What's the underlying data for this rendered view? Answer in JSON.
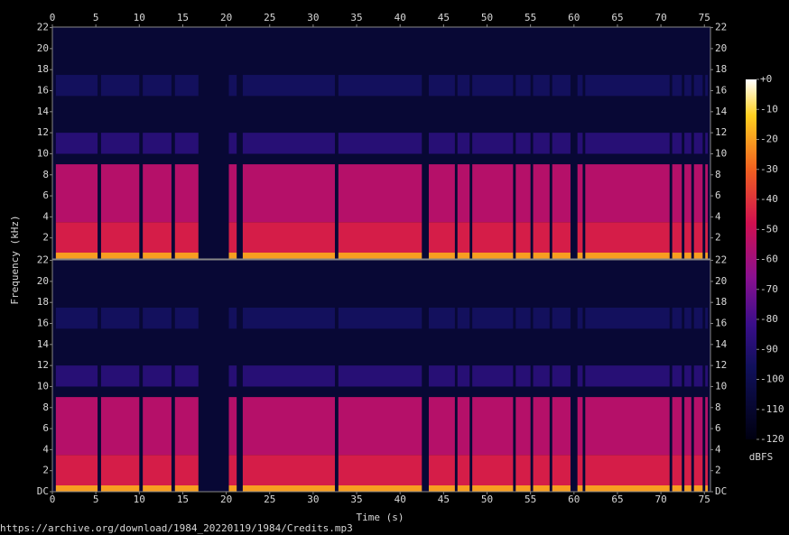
{
  "chart_data": {
    "type": "spectrogram",
    "xlabel": "Time (s)",
    "ylabel": "Frequency (kHz)",
    "zlabel": "dBFS",
    "xlim": [
      0,
      75.7
    ],
    "xticks": [
      0,
      5,
      10,
      15,
      20,
      25,
      30,
      35,
      40,
      45,
      50,
      55,
      60,
      65,
      70,
      75
    ],
    "ylim": [
      0,
      22.05
    ],
    "yticks": [
      {
        "value": 0,
        "label": "DC"
      },
      2,
      4,
      6,
      8,
      10,
      12,
      14,
      16,
      18,
      20,
      22
    ],
    "zlim": [
      -120,
      0
    ],
    "zticks": [
      {
        "value": 0,
        "label": "+0"
      },
      -10,
      -20,
      -30,
      -40,
      -50,
      -60,
      -70,
      -80,
      -90,
      -100,
      -110,
      -120
    ],
    "floor_db": -108,
    "bands": [
      {
        "from": 0,
        "to": 0.6,
        "db": -20
      },
      {
        "from": 0.6,
        "to": 3.5,
        "db": -45
      },
      {
        "from": 3.5,
        "to": 9,
        "db": -55
      },
      {
        "from": 10,
        "to": 12,
        "db": -88
      },
      {
        "from": 15.5,
        "to": 17.5,
        "db": -95
      }
    ],
    "sound": [
      [
        0.4,
        5.2
      ],
      [
        5.6,
        10
      ],
      [
        10.4,
        13.7
      ],
      [
        14.1,
        16.8
      ],
      [
        20.3,
        21.2
      ],
      [
        21.9,
        32.5
      ],
      [
        32.9,
        42.5
      ],
      [
        43.3,
        46.3
      ],
      [
        46.6,
        48
      ],
      [
        48.3,
        53
      ],
      [
        53.3,
        55
      ],
      [
        55.3,
        57.2
      ],
      [
        57.5,
        59.6
      ],
      [
        60.4,
        61
      ],
      [
        61.3,
        71
      ],
      [
        71.3,
        72.4
      ],
      [
        72.7,
        73.5
      ],
      [
        73.8,
        74.8
      ],
      [
        75.1,
        75.4
      ]
    ]
  },
  "footer": "https://archive.org/download/1984_20220119/1984/Credits.mp3"
}
